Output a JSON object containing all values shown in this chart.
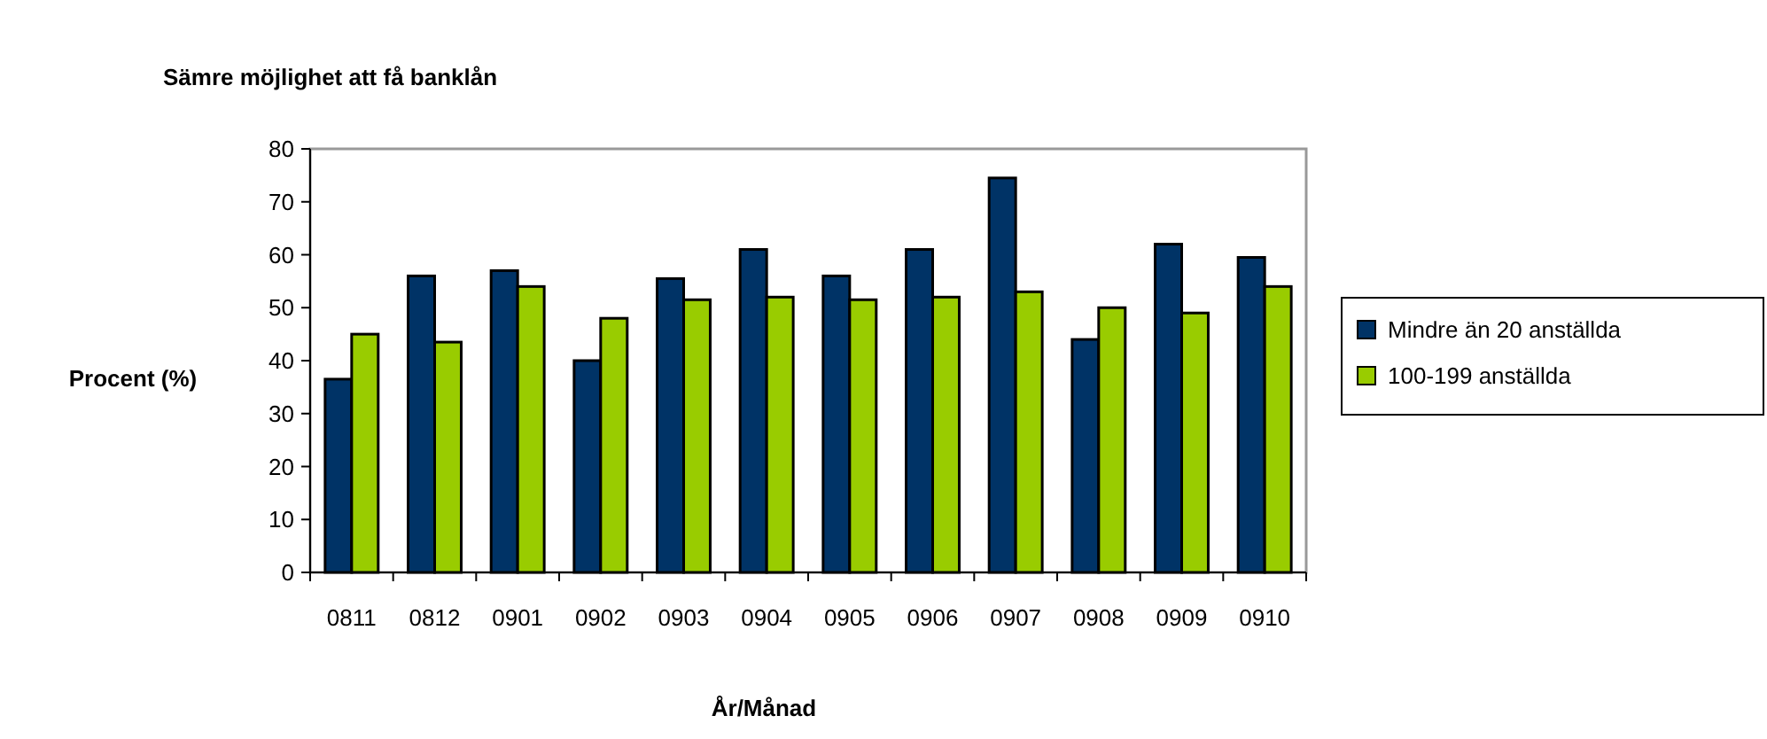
{
  "chart_data": {
    "type": "bar",
    "title": "Sämre möjlighet att få banklån",
    "xlabel": "År/Månad",
    "ylabel": "Procent (%)",
    "categories": [
      "0811",
      "0812",
      "0901",
      "0902",
      "0903",
      "0904",
      "0905",
      "0906",
      "0907",
      "0908",
      "0909",
      "0910"
    ],
    "series": [
      {
        "name": "Mindre än 20 anställda",
        "color": "#003366",
        "values": [
          36.5,
          56,
          57,
          40,
          55.5,
          61,
          56,
          61,
          74.5,
          44,
          62,
          59.5
        ]
      },
      {
        "name": "100-199 anställda",
        "color": "#99cc00",
        "values": [
          45,
          43.5,
          54,
          48,
          51.5,
          52,
          51.5,
          52,
          53,
          50,
          49,
          54
        ]
      }
    ],
    "ylim": [
      0,
      80
    ],
    "yticks": [
      0,
      10,
      20,
      30,
      40,
      50,
      60,
      70,
      80
    ],
    "grid": false,
    "legend": "right"
  }
}
